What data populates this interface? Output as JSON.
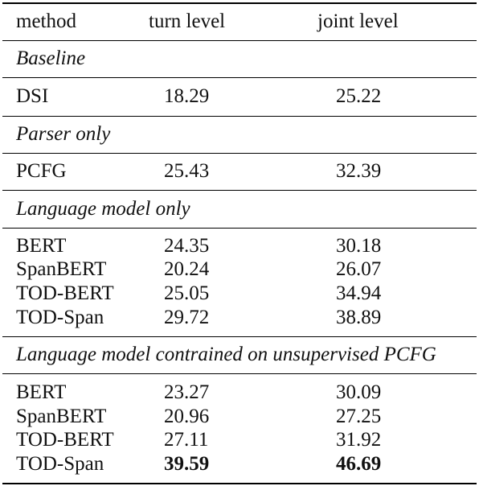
{
  "header": {
    "col1": "method",
    "col2": "turn level",
    "col3": "joint level"
  },
  "sections": [
    {
      "title": "Baseline",
      "rows": [
        {
          "method": "DSI",
          "turn": "18.29",
          "joint": "25.22"
        }
      ]
    },
    {
      "title": "Parser only",
      "rows": [
        {
          "method": "PCFG",
          "turn": "25.43",
          "joint": "32.39"
        }
      ]
    },
    {
      "title": "Language model only",
      "rows": [
        {
          "method": "BERT",
          "turn": "24.35",
          "joint": "30.18"
        },
        {
          "method": "SpanBERT",
          "turn": "20.24",
          "joint": "26.07"
        },
        {
          "method": "TOD-BERT",
          "turn": "25.05",
          "joint": "34.94"
        },
        {
          "method": "TOD-Span",
          "turn": "29.72",
          "joint": "38.89"
        }
      ]
    },
    {
      "title": "Language model contrained on unsupervised PCFG",
      "rows": [
        {
          "method": "BERT",
          "turn": "23.27",
          "joint": "30.09"
        },
        {
          "method": "SpanBERT",
          "turn": "20.96",
          "joint": "27.25"
        },
        {
          "method": "TOD-BERT",
          "turn": "27.11",
          "joint": "31.92"
        },
        {
          "method": "TOD-Span",
          "turn": "39.59",
          "joint": "46.69"
        }
      ]
    }
  ]
}
